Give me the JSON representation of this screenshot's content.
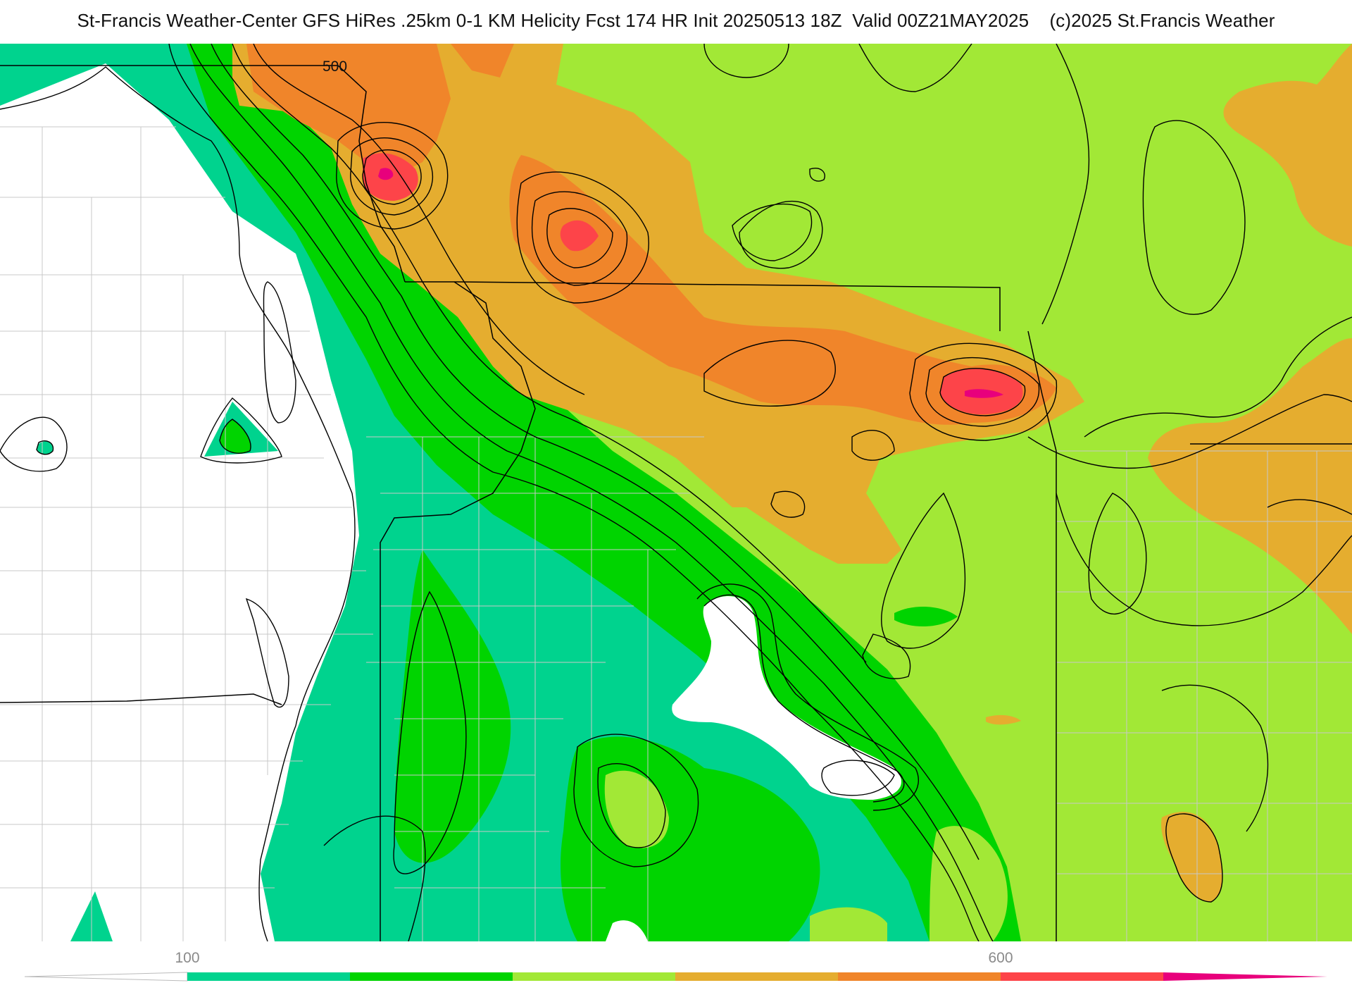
{
  "header": {
    "title": "St-Francis Weather-Center GFS HiRes .25km 0-1 KM Helicity Fcst 174 HR Init 20250513 18Z  Valid 00Z21MAY2025    (c)2025 St.Francis Weather"
  },
  "map": {
    "contour_label": "500",
    "fill_colors": {
      "below_100": "#ffffff",
      "band_100_200": "#00d38e",
      "band_200_300": "#00d400",
      "band_300_400": "#a2e836",
      "band_400_500": "#e5ad2f",
      "band_500_600": "#f0852a",
      "band_600_700": "#fd4449",
      "band_700_plus": "#e8007c"
    },
    "boundary_color": "#000000",
    "county_line_color": "#c8c8c8"
  },
  "colorbar": {
    "tick_labels": [
      "100",
      "600"
    ],
    "colors": [
      "#ffffff",
      "#00d38e",
      "#00d400",
      "#a2e836",
      "#e5ad2f",
      "#f0852a",
      "#fd4449",
      "#e8007c"
    ]
  }
}
